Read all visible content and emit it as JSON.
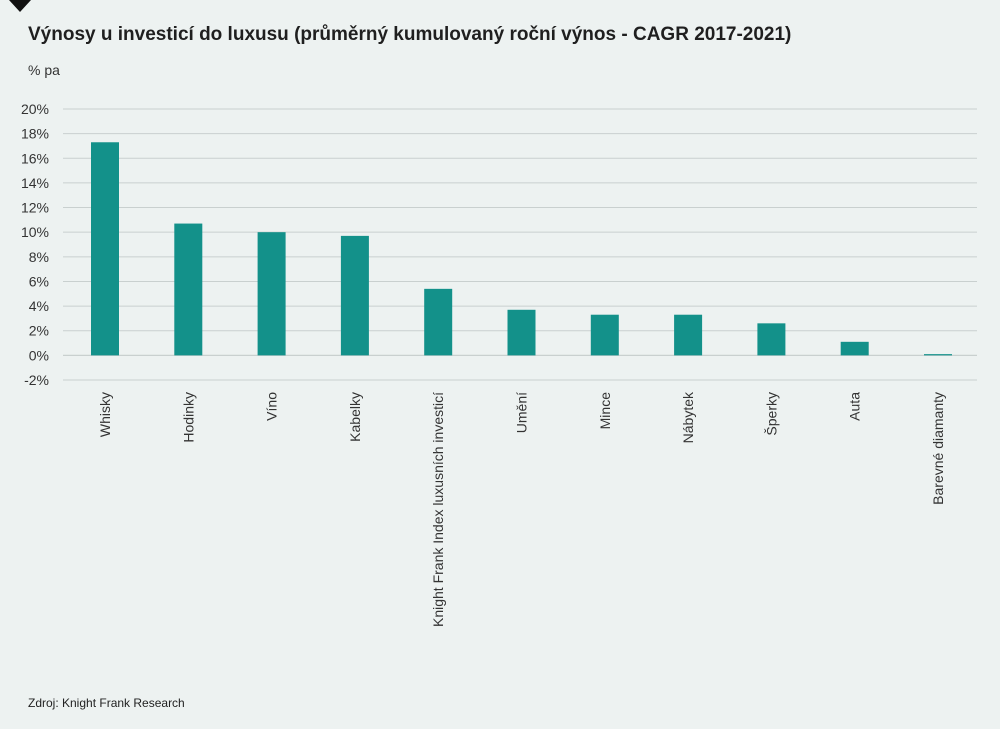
{
  "title": "Výnosy u investicí do luxusu (průměrný kumulovaný roční výnos - CAGR 2017-2021)",
  "unit_label": "% pa",
  "source": "Zdroj: Knight Frank Research",
  "colors": {
    "bar": "#13918a",
    "grid": "#c9d0cf",
    "background": "#edf2f1"
  },
  "chart_data": {
    "type": "bar",
    "title": "Výnosy u investicí do luxusu (průměrný kumulovaný roční výnos - CAGR 2017-2021)",
    "ylabel": "% pa",
    "xlabel": "",
    "ylim": [
      -2,
      20
    ],
    "yticks": [
      20,
      18,
      16,
      14,
      12,
      10,
      8,
      6,
      4,
      2,
      0,
      -2
    ],
    "ytick_labels": [
      "20%",
      "18%",
      "16%",
      "14%",
      "12%",
      "10%",
      "8%",
      "6%",
      "4%",
      "2%",
      "0%",
      "-2%"
    ],
    "grid": true,
    "categories": [
      "Whisky",
      "Hodinky",
      "Víno",
      "Kabelky",
      "Knight Frank Index luxusních investicí",
      "Umění",
      "Mince",
      "Nábytek",
      "Šperky",
      "Auta",
      "Barevné diamanty"
    ],
    "values": [
      17.3,
      10.7,
      10.0,
      9.7,
      5.4,
      3.7,
      3.3,
      3.3,
      2.6,
      1.1,
      0.1
    ]
  }
}
